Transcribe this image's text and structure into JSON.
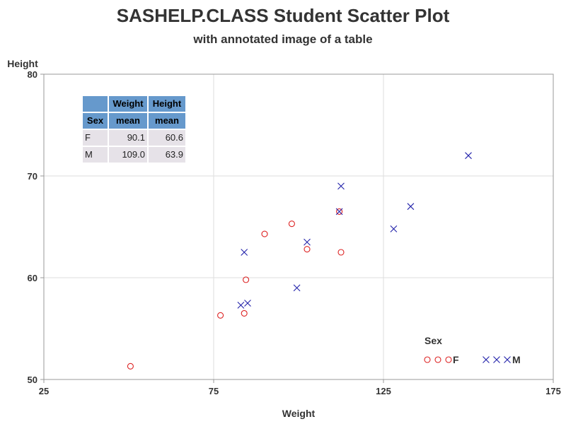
{
  "title": "SASHELP.CLASS Student Scatter Plot",
  "subtitle": "with annotated image of a table",
  "colors": {
    "female": "#dd2222",
    "male": "#2222aa",
    "grid": "#dddddd",
    "frame": "#999999",
    "table_header": "#6699cc",
    "table_body": "#e6e2e8"
  },
  "summary_table": {
    "header_row1": [
      "",
      "Weight",
      "Height"
    ],
    "header_row2": [
      "Sex",
      "mean",
      "mean"
    ],
    "rows": [
      {
        "sex": "F",
        "weight_mean": "90.1",
        "height_mean": "60.6"
      },
      {
        "sex": "M",
        "weight_mean": "109.0",
        "height_mean": "63.9"
      }
    ]
  },
  "chart_data": {
    "type": "scatter",
    "title": "SASHELP.CLASS Student Scatter Plot",
    "subtitle": "with annotated image of a table",
    "xlabel": "Weight",
    "ylabel": "Height",
    "xlim": [
      25,
      175
    ],
    "ylim": [
      50,
      80
    ],
    "xticks": [
      25,
      75,
      125,
      175
    ],
    "yticks": [
      50,
      60,
      70,
      80
    ],
    "grid": true,
    "legend_title": "Sex",
    "legend_placement": "bottom-right inside",
    "series": [
      {
        "name": "F",
        "marker": "circle",
        "points": [
          [
            50.5,
            51.3
          ],
          [
            77.0,
            56.3
          ],
          [
            84.0,
            56.5
          ],
          [
            84.5,
            59.8
          ],
          [
            90.0,
            64.3
          ],
          [
            98.0,
            65.3
          ],
          [
            102.5,
            62.8
          ],
          [
            112.0,
            66.5
          ],
          [
            112.5,
            62.5
          ]
        ]
      },
      {
        "name": "M",
        "marker": "x",
        "points": [
          [
            83.0,
            57.3
          ],
          [
            84.0,
            62.5
          ],
          [
            85.0,
            57.5
          ],
          [
            99.5,
            59.0
          ],
          [
            102.5,
            63.5
          ],
          [
            112.0,
            66.5
          ],
          [
            112.5,
            69.0
          ],
          [
            128.0,
            64.8
          ],
          [
            133.0,
            67.0
          ],
          [
            150.0,
            72.0
          ]
        ]
      }
    ]
  }
}
